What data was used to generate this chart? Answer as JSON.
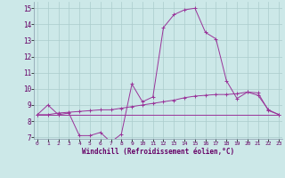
{
  "xlabel": "Windchill (Refroidissement éolien,°C)",
  "hours": [
    0,
    1,
    2,
    3,
    4,
    5,
    6,
    7,
    8,
    9,
    10,
    11,
    12,
    13,
    14,
    15,
    16,
    17,
    18,
    19,
    20,
    21,
    22,
    23
  ],
  "line1": [
    8.4,
    9.0,
    8.4,
    8.5,
    7.1,
    7.1,
    7.3,
    6.7,
    7.2,
    10.3,
    9.2,
    9.5,
    13.8,
    14.6,
    14.9,
    15.0,
    13.5,
    13.1,
    10.5,
    9.4,
    9.8,
    9.6,
    8.7,
    8.4
  ],
  "line2": [
    8.4,
    8.4,
    8.5,
    8.55,
    8.6,
    8.65,
    8.7,
    8.7,
    8.8,
    8.9,
    9.0,
    9.1,
    9.2,
    9.3,
    9.45,
    9.55,
    9.6,
    9.65,
    9.65,
    9.7,
    9.8,
    9.75,
    8.65,
    8.4
  ],
  "line3": [
    8.4,
    8.4,
    8.4,
    8.4,
    8.4,
    8.4,
    8.4,
    8.4,
    8.4,
    8.4,
    8.4,
    8.4,
    8.4,
    8.4,
    8.4,
    8.4,
    8.4,
    8.4,
    8.4,
    8.4,
    8.4,
    8.4,
    8.4,
    8.4
  ],
  "line_color": "#993399",
  "bg_color": "#cce8e8",
  "grid_color": "#aacccc",
  "ylim": [
    6.9,
    15.4
  ],
  "yticks": [
    7,
    8,
    9,
    10,
    11,
    12,
    13,
    14,
    15
  ],
  "xlim": [
    -0.3,
    23.3
  ]
}
